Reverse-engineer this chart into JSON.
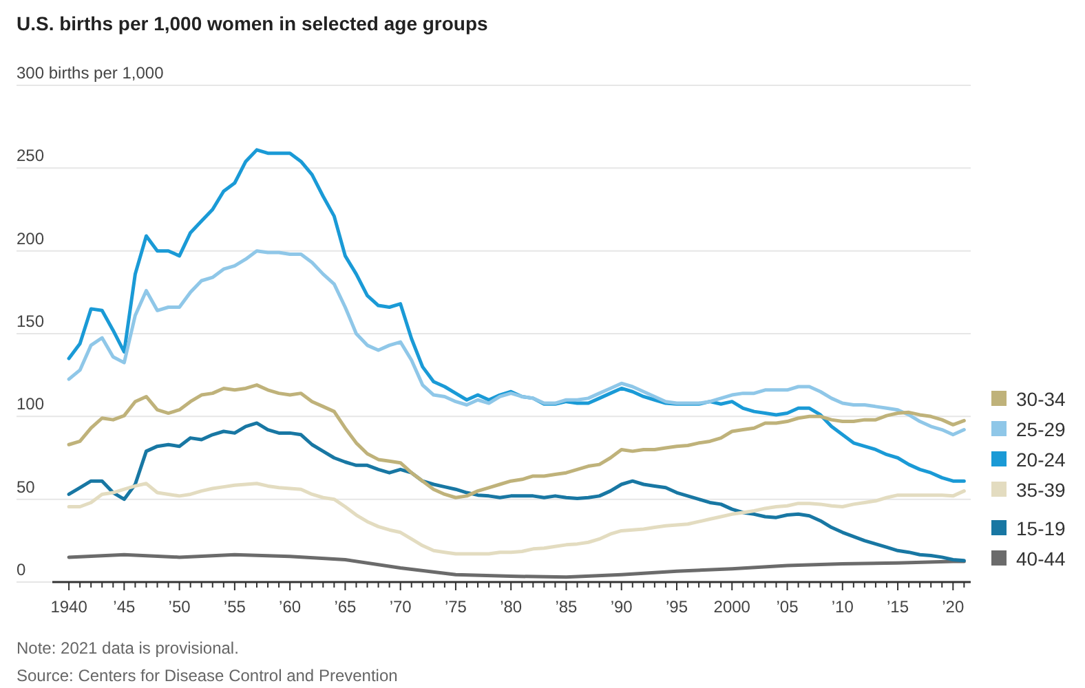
{
  "chart_data": {
    "type": "line",
    "title": "U.S. births per 1,000 women in selected age groups",
    "x": [
      1940,
      1941,
      1942,
      1943,
      1944,
      1945,
      1946,
      1947,
      1948,
      1949,
      1950,
      1951,
      1952,
      1953,
      1954,
      1955,
      1956,
      1957,
      1958,
      1959,
      1960,
      1961,
      1962,
      1963,
      1964,
      1965,
      1966,
      1967,
      1968,
      1969,
      1970,
      1971,
      1972,
      1973,
      1974,
      1975,
      1976,
      1977,
      1978,
      1979,
      1980,
      1981,
      1982,
      1983,
      1984,
      1985,
      1986,
      1987,
      1988,
      1989,
      1990,
      1991,
      1992,
      1993,
      1994,
      1995,
      1996,
      1997,
      1998,
      1999,
      2000,
      2001,
      2002,
      2003,
      2004,
      2005,
      2006,
      2007,
      2008,
      2009,
      2010,
      2011,
      2012,
      2013,
      2014,
      2015,
      2016,
      2017,
      2018,
      2019,
      2020,
      2021
    ],
    "series": [
      {
        "name": "30-34",
        "color": "#bfb27a",
        "values": [
          83,
          85,
          93,
          99,
          98,
          100.5,
          109,
          112,
          104,
          102,
          104,
          109,
          113,
          114,
          117,
          116,
          117,
          119,
          116,
          114,
          113,
          114,
          109,
          106,
          103,
          93,
          84,
          77.5,
          74,
          73,
          72,
          66,
          61,
          56,
          53,
          51,
          52,
          55,
          57,
          59,
          61,
          62,
          64,
          64,
          65,
          66,
          68,
          70,
          71,
          75,
          80,
          79,
          80,
          80,
          81,
          82,
          82.5,
          84,
          85,
          87,
          91,
          92,
          93,
          96,
          96,
          97,
          99,
          100,
          100,
          98,
          97,
          97,
          98,
          98,
          100.5,
          102,
          102.5,
          101,
          100,
          98,
          95,
          97.5
        ]
      },
      {
        "name": "25-29",
        "color": "#8fc7e8",
        "values": [
          122.5,
          128,
          143,
          147.5,
          136,
          132.5,
          161,
          176,
          164,
          166,
          166,
          175,
          182,
          184,
          189,
          191,
          195,
          200,
          199,
          199,
          198,
          198,
          193,
          186,
          180,
          166,
          150,
          143,
          140,
          143,
          145,
          134,
          119,
          113,
          112,
          109,
          107,
          110,
          108,
          112,
          114,
          112,
          111,
          108,
          108,
          110,
          110,
          111,
          114,
          117,
          120,
          118,
          115,
          112,
          109,
          108,
          108,
          108,
          109,
          111,
          113,
          114,
          114,
          116,
          116,
          116,
          118,
          118,
          115,
          111,
          108,
          107,
          107,
          106,
          105,
          104,
          101,
          97,
          94,
          92,
          89,
          92
        ]
      },
      {
        "name": "20-24",
        "color": "#1a9ad6",
        "values": [
          135,
          144,
          165,
          164,
          152,
          139,
          186,
          209,
          200,
          200,
          197,
          211,
          218,
          225,
          236,
          241,
          254,
          261,
          259,
          259,
          259,
          254,
          246,
          233,
          221,
          197,
          186,
          173,
          167,
          166,
          168,
          147,
          130,
          121,
          118,
          114,
          110,
          113,
          110,
          113,
          115,
          112,
          111,
          107.5,
          107.5,
          109,
          108,
          108,
          111,
          114,
          117,
          115,
          112,
          110,
          108,
          107.5,
          107.5,
          107.5,
          109,
          107.5,
          109,
          105,
          103,
          102,
          101,
          102,
          105,
          105,
          101,
          94,
          89,
          84,
          82,
          80,
          77,
          75,
          71,
          68,
          66,
          63,
          61,
          61
        ]
      },
      {
        "name": "35-39",
        "color": "#e3dcc0",
        "values": [
          45.5,
          45.5,
          48,
          53,
          54,
          56,
          58,
          59.5,
          54,
          53,
          52,
          53,
          55,
          56.5,
          57.5,
          58.5,
          59,
          59.5,
          58,
          57,
          56.5,
          56,
          53,
          51,
          50,
          45.5,
          40.5,
          36.5,
          33.5,
          31.5,
          30,
          26,
          22,
          19,
          18,
          17,
          17,
          17,
          17,
          18,
          18,
          18.5,
          20,
          20.5,
          21.5,
          22.5,
          23,
          24,
          26,
          29,
          31,
          31.5,
          32,
          33,
          34,
          34.5,
          35,
          36.5,
          38,
          39.5,
          41,
          42,
          43,
          44.5,
          45.5,
          46,
          47.5,
          47.5,
          47,
          46,
          45.5,
          47,
          48,
          49,
          51,
          52.5,
          52.5,
          52.5,
          52.5,
          52.5,
          52,
          55
        ]
      },
      {
        "name": "15-19",
        "color": "#1877a3",
        "values": [
          53,
          57,
          61,
          61,
          54,
          50,
          59,
          79,
          82,
          83,
          82,
          87,
          86,
          89,
          91,
          90,
          94,
          96,
          92,
          90,
          90,
          89,
          83,
          79,
          75,
          72.5,
          70.5,
          70.5,
          68,
          66,
          68,
          66,
          61,
          59,
          57.5,
          56,
          54,
          52.5,
          52,
          51,
          52,
          52,
          52,
          51,
          52,
          51,
          50.5,
          51,
          52,
          55,
          59,
          61,
          59,
          58,
          57,
          54,
          52,
          50,
          48,
          47,
          44,
          42,
          41,
          39.5,
          39,
          40.5,
          41,
          40,
          37,
          33,
          30,
          27.5,
          25,
          23,
          21,
          19,
          18,
          16.5,
          16,
          15,
          13.5,
          13
        ]
      },
      {
        "name": "40-44",
        "color": "#6b6b6b",
        "x": [
          1940,
          1945,
          1950,
          1955,
          1960,
          1965,
          1970,
          1975,
          1980,
          1985,
          1990,
          1995,
          2000,
          2005,
          2010,
          2015,
          2020,
          2021
        ],
        "values": [
          15,
          16.5,
          15,
          16.5,
          15.5,
          13.5,
          8.5,
          4.5,
          3.5,
          3,
          4.5,
          6.5,
          8,
          10,
          11,
          11.5,
          12.5,
          12.5
        ]
      }
    ],
    "xlim": [
      1938.5,
      2021.6
    ],
    "xticks": [
      {
        "value": 1940,
        "label": "1940"
      },
      {
        "value": 1941,
        "label": null
      },
      {
        "value": 1942,
        "label": null
      },
      {
        "value": 1943,
        "label": null
      },
      {
        "value": 1944,
        "label": null
      },
      {
        "value": 1945,
        "label": "’45"
      },
      {
        "value": 1946,
        "label": null
      },
      {
        "value": 1947,
        "label": null
      },
      {
        "value": 1948,
        "label": null
      },
      {
        "value": 1949,
        "label": null
      },
      {
        "value": 1950,
        "label": "’50"
      },
      {
        "value": 1951,
        "label": null
      },
      {
        "value": 1952,
        "label": null
      },
      {
        "value": 1953,
        "label": null
      },
      {
        "value": 1954,
        "label": null
      },
      {
        "value": 1955,
        "label": "’55"
      },
      {
        "value": 1956,
        "label": null
      },
      {
        "value": 1957,
        "label": null
      },
      {
        "value": 1958,
        "label": null
      },
      {
        "value": 1959,
        "label": null
      },
      {
        "value": 1960,
        "label": "’60"
      },
      {
        "value": 1961,
        "label": null
      },
      {
        "value": 1962,
        "label": null
      },
      {
        "value": 1963,
        "label": null
      },
      {
        "value": 1964,
        "label": null
      },
      {
        "value": 1965,
        "label": "’65"
      },
      {
        "value": 1966,
        "label": null
      },
      {
        "value": 1967,
        "label": null
      },
      {
        "value": 1968,
        "label": null
      },
      {
        "value": 1969,
        "label": null
      },
      {
        "value": 1970,
        "label": "’70"
      },
      {
        "value": 1971,
        "label": null
      },
      {
        "value": 1972,
        "label": null
      },
      {
        "value": 1973,
        "label": null
      },
      {
        "value": 1974,
        "label": null
      },
      {
        "value": 1975,
        "label": "’75"
      },
      {
        "value": 1976,
        "label": null
      },
      {
        "value": 1977,
        "label": null
      },
      {
        "value": 1978,
        "label": null
      },
      {
        "value": 1979,
        "label": null
      },
      {
        "value": 1980,
        "label": "’80"
      },
      {
        "value": 1981,
        "label": null
      },
      {
        "value": 1982,
        "label": null
      },
      {
        "value": 1983,
        "label": null
      },
      {
        "value": 1984,
        "label": null
      },
      {
        "value": 1985,
        "label": "’85"
      },
      {
        "value": 1986,
        "label": null
      },
      {
        "value": 1987,
        "label": null
      },
      {
        "value": 1988,
        "label": null
      },
      {
        "value": 1989,
        "label": null
      },
      {
        "value": 1990,
        "label": "’90"
      },
      {
        "value": 1991,
        "label": null
      },
      {
        "value": 1992,
        "label": null
      },
      {
        "value": 1993,
        "label": null
      },
      {
        "value": 1994,
        "label": null
      },
      {
        "value": 1995,
        "label": "’95"
      },
      {
        "value": 1996,
        "label": null
      },
      {
        "value": 1997,
        "label": null
      },
      {
        "value": 1998,
        "label": null
      },
      {
        "value": 1999,
        "label": null
      },
      {
        "value": 2000,
        "label": "2000"
      },
      {
        "value": 2001,
        "label": null
      },
      {
        "value": 2002,
        "label": null
      },
      {
        "value": 2003,
        "label": null
      },
      {
        "value": 2004,
        "label": null
      },
      {
        "value": 2005,
        "label": "’05"
      },
      {
        "value": 2006,
        "label": null
      },
      {
        "value": 2007,
        "label": null
      },
      {
        "value": 2008,
        "label": null
      },
      {
        "value": 2009,
        "label": null
      },
      {
        "value": 2010,
        "label": "’10"
      },
      {
        "value": 2011,
        "label": null
      },
      {
        "value": 2012,
        "label": null
      },
      {
        "value": 2013,
        "label": null
      },
      {
        "value": 2014,
        "label": null
      },
      {
        "value": 2015,
        "label": "’15"
      },
      {
        "value": 2016,
        "label": null
      },
      {
        "value": 2017,
        "label": null
      },
      {
        "value": 2018,
        "label": null
      },
      {
        "value": 2019,
        "label": null
      },
      {
        "value": 2020,
        "label": "’20"
      },
      {
        "value": 2021,
        "label": null
      }
    ],
    "ylim": [
      0,
      300
    ],
    "yticks": [
      0,
      50,
      100,
      150,
      200,
      250,
      {
        "value": 300,
        "label": "300 births per 1,000"
      }
    ],
    "grid": "y",
    "legend": "right",
    "annotations": [
      "Note: 2021 data is provisional.",
      "Source: Centers for Disease Control and Prevention"
    ]
  }
}
